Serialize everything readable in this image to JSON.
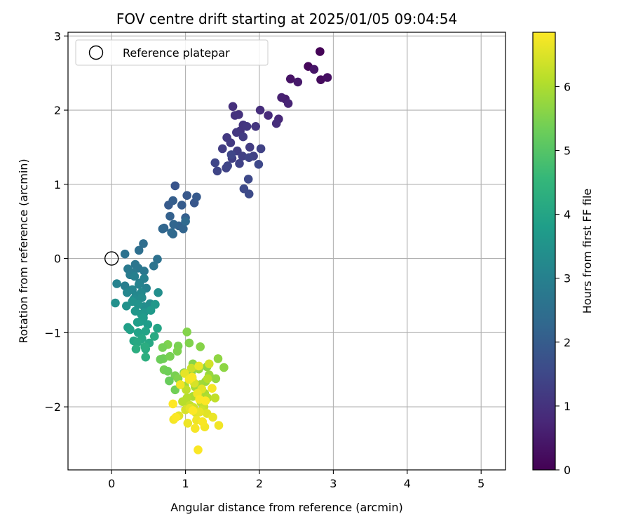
{
  "chart_data": {
    "type": "scatter",
    "title": "FOV centre drift starting at 2025/01/05 09:04:54",
    "xlabel": "Angular distance from reference (arcmin)",
    "ylabel": "Rotation from reference (arcmin)",
    "xlim": [
      -0.59,
      5.33
    ],
    "ylim": [
      -2.85,
      3.05
    ],
    "xticks": [
      0,
      1,
      2,
      3,
      4,
      5
    ],
    "yticks": [
      -2,
      -1,
      0,
      1,
      2,
      3
    ],
    "grid": true,
    "legend": {
      "placement": "top-left",
      "label": "Reference platepar"
    },
    "colorbar": {
      "label": "Hours from first FF file",
      "range": [
        0,
        6.85
      ],
      "ticks": [
        0,
        1,
        2,
        3,
        4,
        5,
        6
      ],
      "colormap": "viridis",
      "stops": [
        "#440154",
        "#482878",
        "#3e4989",
        "#31688e",
        "#26828e",
        "#1f9e89",
        "#35b779",
        "#6ece58",
        "#b5de2b",
        "#fde725"
      ]
    },
    "reference": {
      "x": 0,
      "y": 0
    },
    "x": [
      2.82,
      2.83,
      2.92,
      2.42,
      2.52,
      2.66,
      2.74,
      2.35,
      2.3,
      2.39,
      2.26,
      2.12,
      2.23,
      2.01,
      1.64,
      1.72,
      1.67,
      1.78,
      1.74,
      1.95,
      1.83,
      1.69,
      1.56,
      1.61,
      1.78,
      1.87,
      1.5,
      1.7,
      1.63,
      1.77,
      1.92,
      2.02,
      1.73,
      1.55,
      1.86,
      1.43,
      1.57,
      1.4,
      1.62,
      1.99,
      1.85,
      1.79,
      1.86,
      0.86,
      1.12,
      1.02,
      1.15,
      0.77,
      0.95,
      0.83,
      1.0,
      0.79,
      0.91,
      0.71,
      0.97,
      0.84,
      0.69,
      0.83,
      0.81,
      1.0,
      0.43,
      0.37,
      0.62,
      0.18,
      0.57,
      0.32,
      0.36,
      0.44,
      0.22,
      0.29,
      0.25,
      0.38,
      0.18,
      0.31,
      0.44,
      0.47,
      0.07,
      0.37,
      0.28,
      0.21,
      0.33,
      0.4,
      0.3,
      0.41,
      0.52,
      0.44,
      0.63,
      0.05,
      0.2,
      0.28,
      0.36,
      0.44,
      0.32,
      0.4,
      0.59,
      0.53,
      0.43,
      0.39,
      0.49,
      0.35,
      0.22,
      0.25,
      0.36,
      0.46,
      0.62,
      0.3,
      0.41,
      0.51,
      0.35,
      0.58,
      0.46,
      0.45,
      0.33,
      0.46,
      1.02,
      0.76,
      1.05,
      1.2,
      0.9,
      0.69,
      0.89,
      0.7,
      0.79,
      0.66,
      1.1,
      1.08,
      1.29,
      1.44,
      1.52,
      0.71,
      0.76,
      0.98,
      1.09,
      1.18,
      0.86,
      1.27,
      0.9,
      1.2,
      1.32,
      1.41,
      0.99,
      0.78,
      0.86,
      1.13,
      1.26,
      1.1,
      1.3,
      1.02,
      0.96,
      1.21,
      1.4,
      1.06,
      1.25,
      1.11,
      1.22,
      1.0,
      1.14,
      1.29,
      0.91,
      1.06,
      1.19,
      1.37,
      1.03,
      1.15,
      1.45,
      1.26,
      0.84,
      1.13,
      1.23,
      1.17,
      1.3,
      1.01,
      1.08,
      1.32,
      1.12,
      1.22,
      0.99,
      1.18,
      1.16,
      0.93,
      1.05,
      1.36,
      1.09,
      1.19,
      1.27,
      0.83,
      1.1,
      0.87
    ],
    "y": [
      2.79,
      2.41,
      2.44,
      2.42,
      2.38,
      2.59,
      2.55,
      2.15,
      2.17,
      2.09,
      1.88,
      1.93,
      1.82,
      2.0,
      2.05,
      1.94,
      1.93,
      1.8,
      1.72,
      1.78,
      1.78,
      1.7,
      1.63,
      1.56,
      1.64,
      1.5,
      1.48,
      1.45,
      1.35,
      1.38,
      1.38,
      1.48,
      1.28,
      1.22,
      1.36,
      1.18,
      1.25,
      1.29,
      1.4,
      1.27,
      1.07,
      0.94,
      0.87,
      0.98,
      0.75,
      0.85,
      0.83,
      0.72,
      0.72,
      0.78,
      0.55,
      0.57,
      0.44,
      0.41,
      0.4,
      0.46,
      0.4,
      0.33,
      0.35,
      0.5,
      0.2,
      0.11,
      -0.01,
      0.06,
      -0.1,
      -0.08,
      -0.13,
      -0.17,
      -0.14,
      -0.19,
      -0.22,
      -0.33,
      -0.37,
      -0.24,
      -0.27,
      -0.4,
      -0.34,
      -0.35,
      -0.42,
      -0.46,
      -0.5,
      -0.46,
      -0.55,
      -0.53,
      -0.61,
      -0.65,
      -0.46,
      -0.6,
      -0.64,
      -0.58,
      -0.62,
      -0.73,
      -0.71,
      -0.75,
      -0.62,
      -0.7,
      -0.8,
      -0.85,
      -0.89,
      -0.86,
      -0.93,
      -0.96,
      -1.0,
      -0.98,
      -0.94,
      -1.11,
      -1.08,
      -1.14,
      -1.13,
      -1.05,
      -1.22,
      -1.19,
      -1.22,
      -1.33,
      -0.99,
      -1.16,
      -1.14,
      -1.19,
      -1.18,
      -1.2,
      -1.25,
      -1.35,
      -1.32,
      -1.36,
      -1.42,
      -1.53,
      -1.46,
      -1.35,
      -1.47,
      -1.5,
      -1.52,
      -1.54,
      -1.61,
      -1.49,
      -1.58,
      -1.66,
      -1.62,
      -1.7,
      -1.57,
      -1.62,
      -1.72,
      -1.65,
      -1.77,
      -1.73,
      -1.82,
      -1.86,
      -1.88,
      -1.88,
      -1.93,
      -1.94,
      -1.88,
      -1.98,
      -2.0,
      -2.01,
      -2.05,
      -2.04,
      -2.08,
      -2.09,
      -2.12,
      -2.02,
      -2.07,
      -2.14,
      -2.22,
      -2.18,
      -2.25,
      -2.27,
      -2.17,
      -2.29,
      -2.2,
      -2.58,
      -1.62,
      -1.77,
      -1.48,
      -1.42,
      -1.68,
      -1.76,
      -1.55,
      -1.45,
      -1.82,
      -1.7,
      -1.63,
      -1.75,
      -1.6,
      -1.9,
      -1.92,
      -1.96,
      -2.05,
      -2.14
    ],
    "c": [
      0.05,
      0.2,
      0.28,
      0.35,
      0.48,
      0.12,
      0.4,
      0.55,
      0.62,
      0.7,
      0.78,
      0.83,
      0.9,
      0.88,
      0.95,
      1.0,
      1.02,
      1.05,
      1.07,
      1.08,
      1.1,
      1.12,
      1.15,
      1.18,
      1.2,
      1.22,
      1.25,
      1.27,
      1.3,
      1.32,
      1.33,
      1.35,
      1.37,
      1.38,
      1.4,
      1.42,
      1.44,
      1.46,
      1.48,
      1.5,
      1.52,
      1.55,
      1.58,
      1.8,
      1.85,
      1.9,
      1.93,
      1.96,
      2.0,
      2.03,
      2.06,
      2.1,
      2.13,
      2.16,
      2.2,
      2.23,
      2.26,
      2.3,
      2.33,
      2.36,
      2.45,
      2.5,
      2.55,
      2.58,
      2.62,
      2.66,
      2.7,
      2.73,
      2.77,
      2.8,
      2.84,
      2.88,
      2.92,
      2.95,
      2.98,
      3.02,
      3.05,
      3.08,
      3.12,
      3.15,
      3.18,
      3.22,
      3.25,
      3.28,
      3.32,
      3.35,
      3.38,
      3.42,
      3.45,
      3.48,
      3.52,
      3.55,
      3.58,
      3.62,
      3.65,
      3.68,
      3.72,
      3.75,
      3.78,
      3.82,
      3.85,
      3.88,
      3.92,
      3.95,
      3.98,
      4.02,
      4.05,
      4.08,
      4.12,
      4.15,
      4.18,
      4.22,
      4.25,
      4.3,
      5.55,
      5.5,
      5.52,
      5.58,
      5.45,
      5.4,
      5.48,
      5.35,
      5.42,
      5.3,
      5.6,
      5.62,
      5.65,
      5.68,
      5.66,
      5.38,
      5.33,
      5.5,
      5.72,
      5.75,
      5.44,
      5.8,
      5.52,
      5.85,
      5.78,
      5.7,
      5.88,
      5.25,
      5.36,
      5.92,
      5.95,
      6.0,
      6.05,
      6.1,
      6.12,
      6.15,
      6.2,
      6.25,
      6.3,
      6.35,
      6.4,
      6.45,
      6.5,
      6.55,
      6.58,
      6.6,
      6.63,
      6.65,
      6.68,
      6.7,
      6.72,
      6.74,
      6.76,
      6.78,
      6.8,
      6.82,
      6.1,
      6.2,
      6.3,
      6.4,
      6.45,
      6.55,
      6.6,
      6.65,
      6.7,
      6.72,
      6.75,
      6.78,
      6.8,
      6.82,
      6.84,
      6.85,
      6.84,
      6.83
    ]
  }
}
